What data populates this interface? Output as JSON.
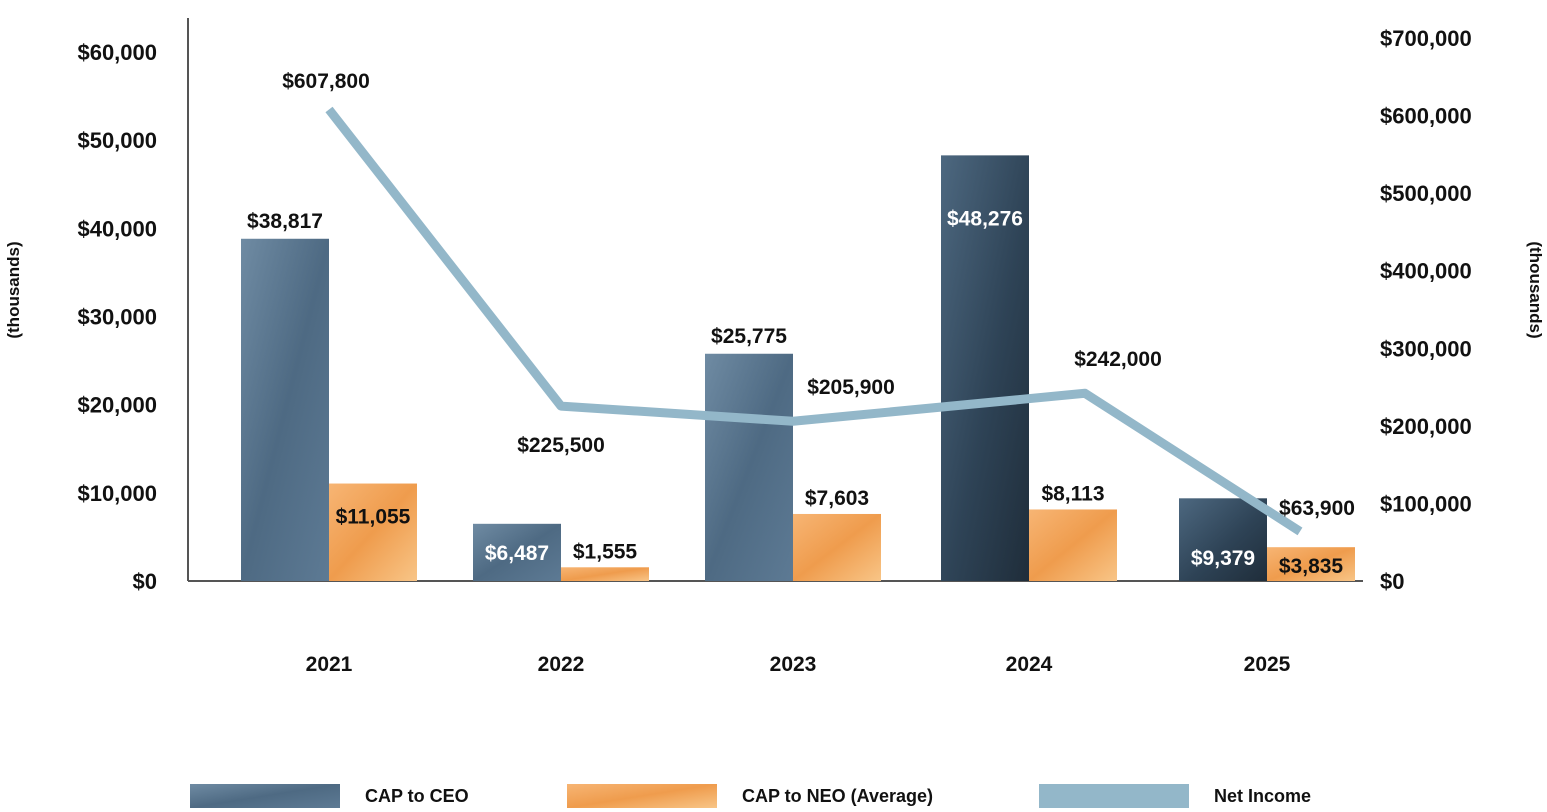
{
  "chart_data": {
    "type": "bar",
    "categories": [
      "2021",
      "2022",
      "2023",
      "2024",
      "2025"
    ],
    "series": [
      {
        "name": "CAP to CEO",
        "axis": "left",
        "type": "bar",
        "values": [
          38817,
          6487,
          25775,
          48276,
          9379
        ],
        "labels": [
          "$38,817",
          "$6,487",
          "$25,775",
          "$48,276",
          "$9,379"
        ],
        "color": "#56728b",
        "color_dark": "#2f4456"
      },
      {
        "name": "CAP to NEO (Average)",
        "axis": "left",
        "type": "bar",
        "values": [
          11055,
          1555,
          7603,
          8113,
          3835
        ],
        "labels": [
          "$11,055",
          "$1,555",
          "$7,603",
          "$8,113",
          "$3,835"
        ],
        "color": "#f2a55a",
        "color_light": "#f7bf7c"
      },
      {
        "name": "Net Income",
        "axis": "right",
        "type": "line",
        "values": [
          607800,
          225500,
          205900,
          242000,
          63900
        ],
        "labels": [
          "$607,800",
          "$225,500",
          "$205,900",
          "$242,000",
          "$63,900"
        ],
        "color": "#93b7c9"
      }
    ],
    "y_left": {
      "ylim": [
        0,
        60000
      ],
      "ticks": [
        0,
        10000,
        20000,
        30000,
        40000,
        50000,
        60000
      ],
      "tick_labels": [
        "$0",
        "$10,000",
        "$20,000",
        "$30,000",
        "$40,000",
        "$50,000",
        "$60,000"
      ],
      "label": "(thousands)"
    },
    "y_right": {
      "ylim": [
        0,
        700000
      ],
      "ticks": [
        0,
        100000,
        200000,
        300000,
        400000,
        500000,
        600000,
        700000
      ],
      "tick_labels": [
        "$0",
        "$100,000",
        "$200,000",
        "$300,000",
        "$400,000",
        "$500,000",
        "$600,000",
        "$700,000"
      ],
      "label": "(thousands)"
    },
    "legend": {
      "position": "bottom",
      "items": [
        "CAP to CEO",
        "CAP to NEO (Average)",
        "Net Income"
      ]
    },
    "title": "",
    "xlabel": ""
  }
}
